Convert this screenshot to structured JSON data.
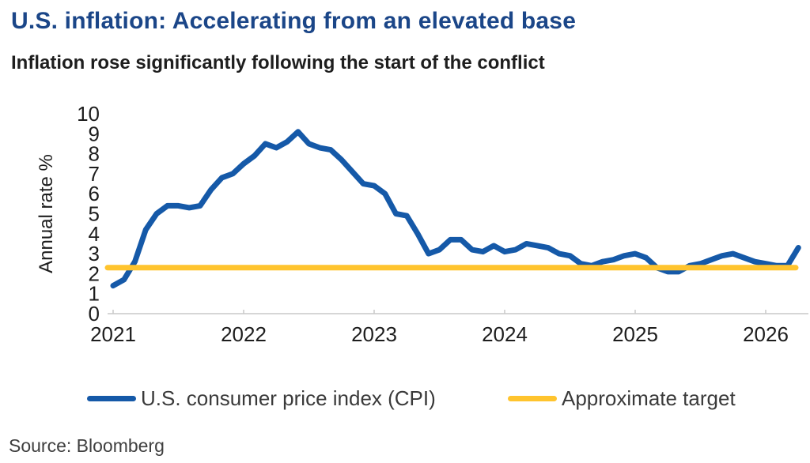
{
  "header": {
    "title": "U.S. inflation: Accelerating from an elevated base",
    "subtitle": "Inflation rose significantly following the start of the conflict"
  },
  "chart_data": {
    "type": "line",
    "title": "U.S. inflation: Accelerating from an elevated base",
    "subtitle": "Inflation rose significantly following the start of the conflict",
    "ylabel": "Annual rate %",
    "ylim": [
      0,
      10
    ],
    "yticks": [
      0,
      1,
      2,
      3,
      4,
      5,
      6,
      7,
      8,
      9,
      10
    ],
    "xticks": [
      "2021",
      "2022",
      "2023",
      "2024",
      "2025",
      "2026"
    ],
    "x_unit": "month",
    "x_range": [
      "2021-01",
      "2026-04"
    ],
    "grid": false,
    "legend_position": "bottom",
    "series": [
      {
        "name": "U.S. consumer price index (CPI)",
        "type": "line",
        "color": "#1559A8",
        "values": [
          1.4,
          1.7,
          2.6,
          4.2,
          5.0,
          5.4,
          5.4,
          5.3,
          5.4,
          6.2,
          6.8,
          7.0,
          7.5,
          7.9,
          8.5,
          8.3,
          8.6,
          9.1,
          8.5,
          8.3,
          8.2,
          7.7,
          7.1,
          6.5,
          6.4,
          6.0,
          5.0,
          4.9,
          4.0,
          3.0,
          3.2,
          3.7,
          3.7,
          3.2,
          3.1,
          3.4,
          3.1,
          3.2,
          3.5,
          3.4,
          3.3,
          3.0,
          2.9,
          2.5,
          2.4,
          2.6,
          2.7,
          2.9,
          3.0,
          2.8,
          2.3,
          2.1,
          2.1,
          2.4,
          2.5,
          2.7,
          2.9,
          3.0,
          2.8,
          2.6,
          2.5,
          2.4,
          2.4,
          3.3
        ]
      },
      {
        "name": "Approximate target",
        "type": "constant-line",
        "color": "#FFC42E",
        "value": 2.3
      }
    ],
    "colors": {
      "axis": "#C8C8C8",
      "tick_text": "#1D1D1D"
    }
  },
  "legend": {
    "items": [
      {
        "label": "U.S. consumer price index (CPI)",
        "color": "#1559A8"
      },
      {
        "label": "Approximate target",
        "color": "#FFC42E"
      }
    ]
  },
  "footer": {
    "source": "Source: Bloomberg"
  }
}
